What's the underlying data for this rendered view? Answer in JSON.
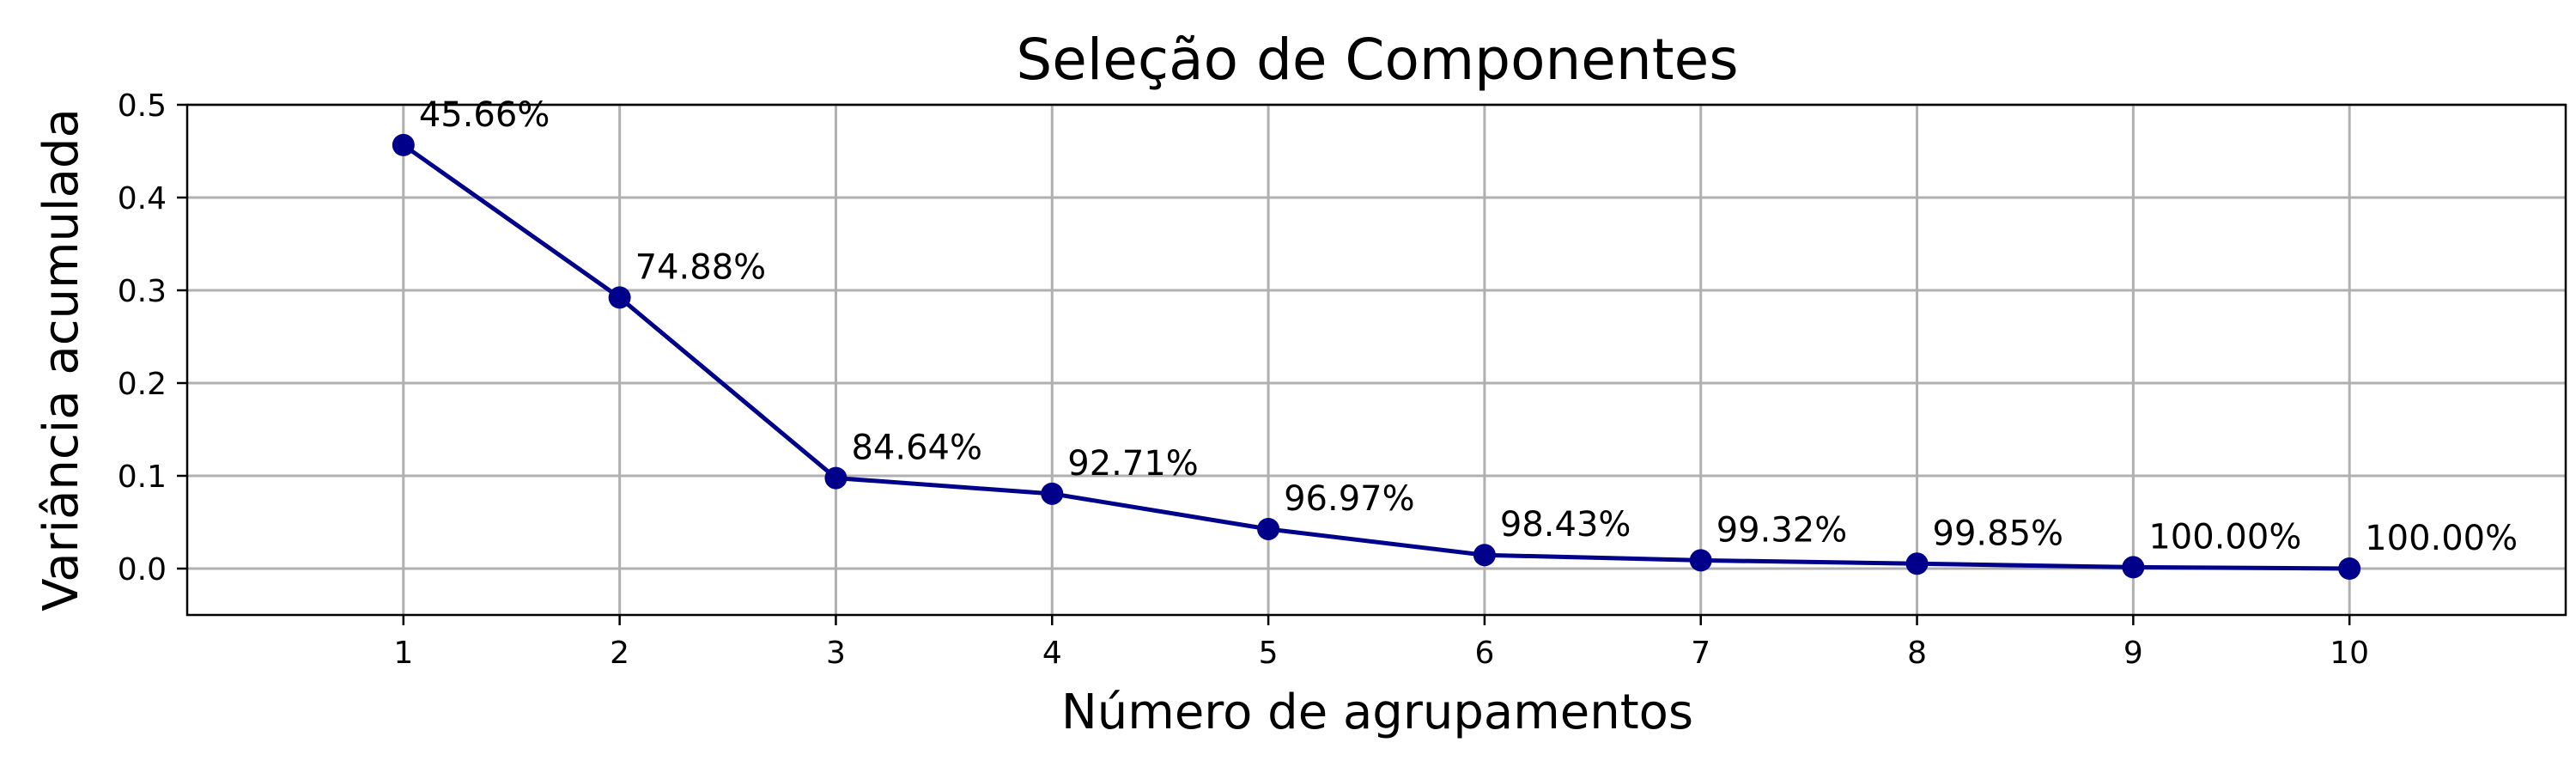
{
  "chart_data": {
    "type": "line",
    "title": "Seleção de Componentes",
    "xlabel": "Número de agrupamentos",
    "ylabel": "Variância acumulada",
    "x": [
      1,
      2,
      3,
      4,
      5,
      6,
      7,
      8,
      9,
      10
    ],
    "values": [
      0.4566,
      0.2922,
      0.0976,
      0.0807,
      0.0426,
      0.0146,
      0.0089,
      0.0053,
      0.0015,
      0.0
    ],
    "data_labels": [
      "45.66%",
      "74.88%",
      "84.64%",
      "92.71%",
      "96.97%",
      "98.43%",
      "99.32%",
      "99.85%",
      "100.00%",
      "100.00%"
    ],
    "xticks": [
      "1",
      "2",
      "3",
      "4",
      "5",
      "6",
      "7",
      "8",
      "9",
      "10"
    ],
    "yticks": [
      "0.0",
      "0.1",
      "0.2",
      "0.3",
      "0.4",
      "0.5"
    ],
    "ytick_values": [
      0.0,
      0.1,
      0.2,
      0.3,
      0.4,
      0.5
    ],
    "xlim": [
      0,
      11
    ],
    "ylim": [
      -0.05,
      0.5
    ],
    "grid": true,
    "legend": "none",
    "colors": {
      "line": "#00008b",
      "marker": "#00008b",
      "grid": "#b0b0b0"
    }
  }
}
